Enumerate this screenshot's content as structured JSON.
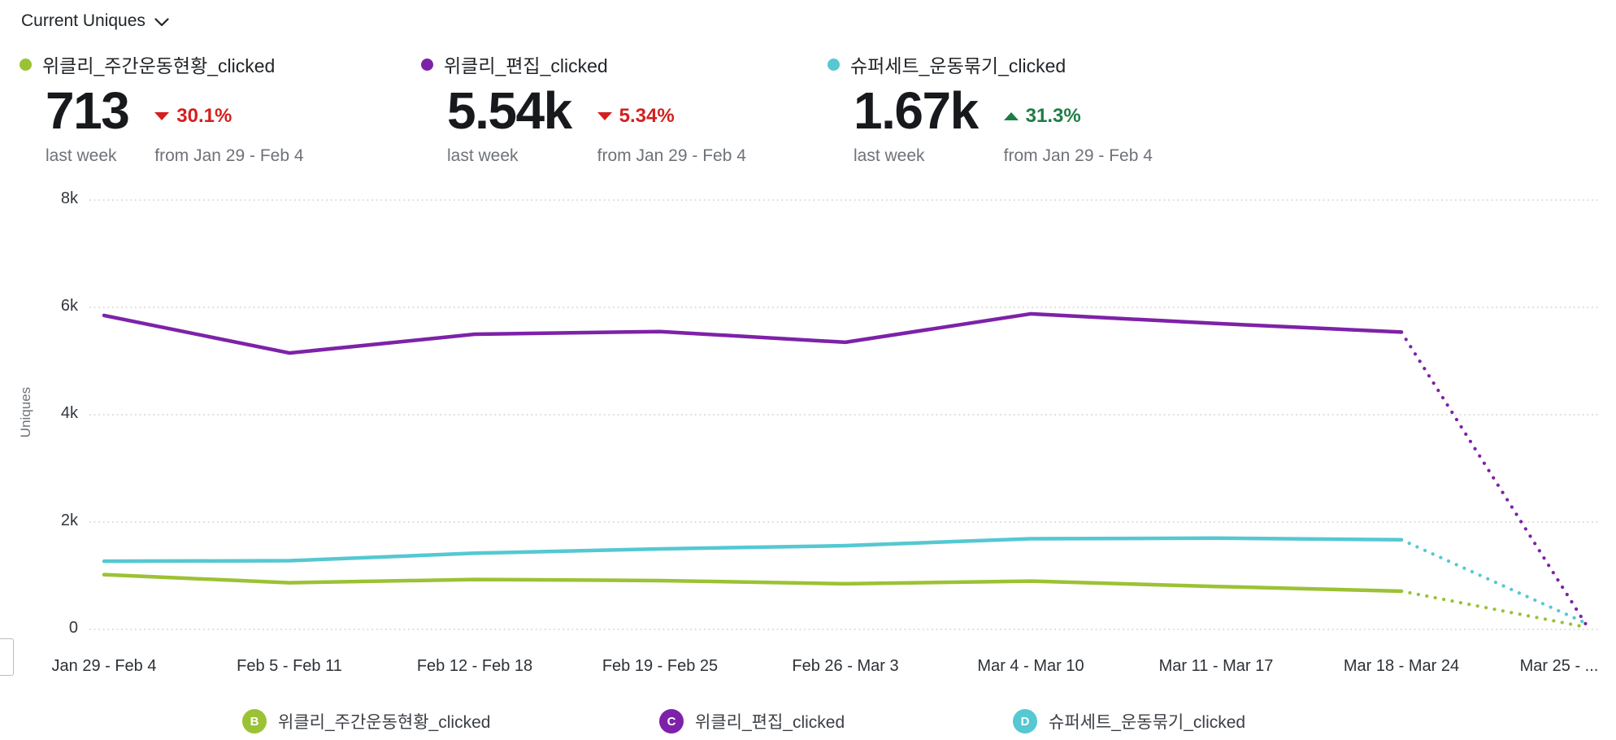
{
  "header": {
    "metric_selector": "Current Uniques",
    "chevron_icon": "chevron-down"
  },
  "colors": {
    "positive": "#1e7d46",
    "negative": "#d41f1f",
    "grid": "#d2d2d2",
    "axis_text": "#33373c",
    "muted_text": "#6e7278"
  },
  "kpis": [
    {
      "title": "위클리_주간운동현황_clicked",
      "value": "713",
      "delta": "30.1%",
      "direction": "down",
      "period": "last week",
      "comparison": "from Jan 29 - Feb 4",
      "color": "#9bc234"
    },
    {
      "title": "위클리_편집_clicked",
      "value": "5.54k",
      "delta": "5.34%",
      "direction": "down",
      "period": "last week",
      "comparison": "from Jan 29 - Feb 4",
      "color": "#7d22a8"
    },
    {
      "title": "슈퍼세트_운동묶기_clicked",
      "value": "1.67k",
      "delta": "31.3%",
      "direction": "up",
      "period": "last week",
      "comparison": "from Jan 29 - Feb 4",
      "color": "#55c8d2"
    }
  ],
  "chart_data": {
    "type": "line",
    "title": "Current Uniques",
    "xlabel": "",
    "ylabel": "Uniques",
    "ylim": [
      0,
      8000
    ],
    "yticks": [
      0,
      2000,
      4000,
      6000,
      8000
    ],
    "ytick_labels": [
      "0",
      "2k",
      "4k",
      "6k",
      "8k"
    ],
    "grid": "horizontal-dotted",
    "legend_position": "bottom",
    "categories": [
      "Jan 29 - Feb 4",
      "Feb 5 - Feb 11",
      "Feb 12 - Feb 18",
      "Feb 19 - Feb 25",
      "Feb 26 - Mar 3",
      "Mar 4 - Mar 10",
      "Mar 11 - Mar 17",
      "Mar 18 - Mar 24",
      "Mar 25 - ..."
    ],
    "projection_from_index": 7,
    "projection_note": "final segment rendered dotted (incomplete week)",
    "series": [
      {
        "name": "위클리_주간운동현황_clicked",
        "letter": "B",
        "color": "#9bc234",
        "values": [
          1020,
          870,
          930,
          910,
          850,
          900,
          800,
          713,
          40
        ]
      },
      {
        "name": "위클리_편집_clicked",
        "letter": "C",
        "color": "#7d22a8",
        "values": [
          5850,
          5150,
          5500,
          5550,
          5350,
          5880,
          5700,
          5540,
          70
        ]
      },
      {
        "name": "슈퍼세트_운동묶기_clicked",
        "letter": "D",
        "color": "#55c8d2",
        "values": [
          1270,
          1280,
          1420,
          1500,
          1560,
          1690,
          1700,
          1670,
          110
        ]
      }
    ]
  },
  "legend": {
    "items": [
      {
        "letter": "B",
        "label": "위클리_주간운동현황_clicked",
        "color": "#9bc234"
      },
      {
        "letter": "C",
        "label": "위클리_편집_clicked",
        "color": "#7d22a8"
      },
      {
        "letter": "D",
        "label": "슈퍼세트_운동묶기_clicked",
        "color": "#55c8d2"
      }
    ]
  }
}
